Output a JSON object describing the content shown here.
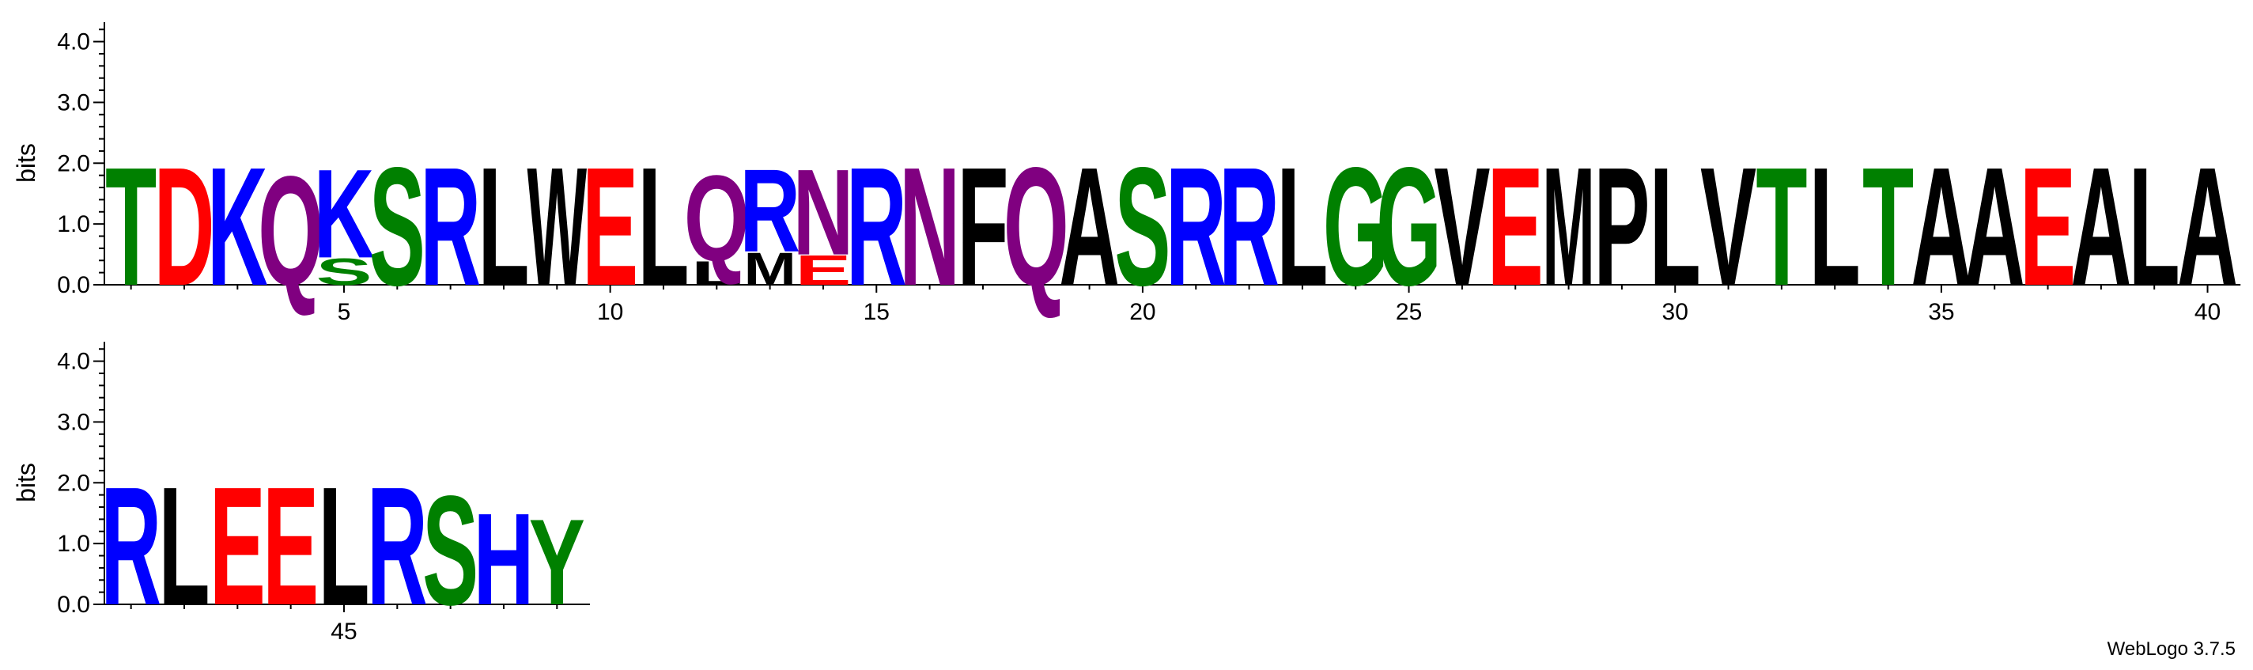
{
  "chart_data": {
    "type": "sequence-logo",
    "ylabel": "bits",
    "ylim": [
      0,
      4.32
    ],
    "yticks": [
      "0.0",
      "1.0",
      "2.0",
      "3.0",
      "4.0"
    ],
    "colors": {
      "polar": "#008000",
      "acidic": "#ff0000",
      "basic": "#0000ff",
      "neutral": "#800080",
      "hydrophobic": "#000000"
    },
    "rows": [
      {
        "first_position": 1,
        "last_position": 40,
        "xticks": [
          5,
          10,
          15,
          20,
          25,
          30,
          35,
          40
        ],
        "positions": [
          {
            "pos": 1,
            "stack": [
              {
                "letter": "T",
                "bits": 2.0
              }
            ]
          },
          {
            "pos": 2,
            "stack": [
              {
                "letter": "D",
                "bits": 2.0
              }
            ]
          },
          {
            "pos": 3,
            "stack": [
              {
                "letter": "K",
                "bits": 2.0
              }
            ]
          },
          {
            "pos": 4,
            "stack": [
              {
                "letter": "Q",
                "bits": 1.85
              }
            ]
          },
          {
            "pos": 5,
            "stack": [
              {
                "letter": "S",
                "bits": 0.45
              },
              {
                "letter": "K",
                "bits": 1.5
              }
            ]
          },
          {
            "pos": 6,
            "stack": [
              {
                "letter": "S",
                "bits": 2.0
              }
            ]
          },
          {
            "pos": 7,
            "stack": [
              {
                "letter": "R",
                "bits": 2.0
              }
            ]
          },
          {
            "pos": 8,
            "stack": [
              {
                "letter": "L",
                "bits": 2.0
              }
            ]
          },
          {
            "pos": 9,
            "stack": [
              {
                "letter": "W",
                "bits": 2.0
              }
            ]
          },
          {
            "pos": 10,
            "stack": [
              {
                "letter": "E",
                "bits": 2.0
              }
            ]
          },
          {
            "pos": 11,
            "stack": [
              {
                "letter": "L",
                "bits": 2.0
              }
            ]
          },
          {
            "pos": 12,
            "stack": [
              {
                "letter": "L",
                "bits": 0.4
              },
              {
                "letter": "Q",
                "bits": 1.45
              }
            ]
          },
          {
            "pos": 13,
            "stack": [
              {
                "letter": "M",
                "bits": 0.55
              },
              {
                "letter": "R",
                "bits": 1.4
              }
            ]
          },
          {
            "pos": 14,
            "stack": [
              {
                "letter": "E",
                "bits": 0.5
              },
              {
                "letter": "N",
                "bits": 1.45
              }
            ]
          },
          {
            "pos": 15,
            "stack": [
              {
                "letter": "R",
                "bits": 2.0
              }
            ]
          },
          {
            "pos": 16,
            "stack": [
              {
                "letter": "N",
                "bits": 2.0
              }
            ]
          },
          {
            "pos": 17,
            "stack": [
              {
                "letter": "F",
                "bits": 2.0
              }
            ]
          },
          {
            "pos": 18,
            "stack": [
              {
                "letter": "Q",
                "bits": 2.0
              }
            ]
          },
          {
            "pos": 19,
            "stack": [
              {
                "letter": "A",
                "bits": 2.0
              }
            ]
          },
          {
            "pos": 20,
            "stack": [
              {
                "letter": "S",
                "bits": 2.0
              }
            ]
          },
          {
            "pos": 21,
            "stack": [
              {
                "letter": "R",
                "bits": 2.0
              }
            ]
          },
          {
            "pos": 22,
            "stack": [
              {
                "letter": "R",
                "bits": 2.0
              }
            ]
          },
          {
            "pos": 23,
            "stack": [
              {
                "letter": "L",
                "bits": 2.0
              }
            ]
          },
          {
            "pos": 24,
            "stack": [
              {
                "letter": "G",
                "bits": 2.0
              }
            ]
          },
          {
            "pos": 25,
            "stack": [
              {
                "letter": "G",
                "bits": 2.0
              }
            ]
          },
          {
            "pos": 26,
            "stack": [
              {
                "letter": "V",
                "bits": 2.0
              }
            ]
          },
          {
            "pos": 27,
            "stack": [
              {
                "letter": "E",
                "bits": 2.0
              }
            ]
          },
          {
            "pos": 28,
            "stack": [
              {
                "letter": "M",
                "bits": 2.0
              }
            ]
          },
          {
            "pos": 29,
            "stack": [
              {
                "letter": "P",
                "bits": 2.0
              }
            ]
          },
          {
            "pos": 30,
            "stack": [
              {
                "letter": "L",
                "bits": 2.0
              }
            ]
          },
          {
            "pos": 31,
            "stack": [
              {
                "letter": "V",
                "bits": 2.0
              }
            ]
          },
          {
            "pos": 32,
            "stack": [
              {
                "letter": "T",
                "bits": 2.0
              }
            ]
          },
          {
            "pos": 33,
            "stack": [
              {
                "letter": "L",
                "bits": 2.0
              }
            ]
          },
          {
            "pos": 34,
            "stack": [
              {
                "letter": "T",
                "bits": 2.0
              }
            ]
          },
          {
            "pos": 35,
            "stack": [
              {
                "letter": "A",
                "bits": 2.0
              }
            ]
          },
          {
            "pos": 36,
            "stack": [
              {
                "letter": "A",
                "bits": 2.0
              }
            ]
          },
          {
            "pos": 37,
            "stack": [
              {
                "letter": "E",
                "bits": 2.0
              }
            ]
          },
          {
            "pos": 38,
            "stack": [
              {
                "letter": "A",
                "bits": 2.0
              }
            ]
          },
          {
            "pos": 39,
            "stack": [
              {
                "letter": "L",
                "bits": 2.0
              }
            ]
          },
          {
            "pos": 40,
            "stack": [
              {
                "letter": "A",
                "bits": 2.0
              }
            ]
          }
        ]
      },
      {
        "first_position": 41,
        "last_position": 49,
        "xticks": [
          45
        ],
        "positions": [
          {
            "pos": 41,
            "stack": [
              {
                "letter": "R",
                "bits": 2.0
              }
            ]
          },
          {
            "pos": 42,
            "stack": [
              {
                "letter": "L",
                "bits": 2.0
              }
            ]
          },
          {
            "pos": 43,
            "stack": [
              {
                "letter": "E",
                "bits": 2.0
              }
            ]
          },
          {
            "pos": 44,
            "stack": [
              {
                "letter": "E",
                "bits": 2.0
              }
            ]
          },
          {
            "pos": 45,
            "stack": [
              {
                "letter": "L",
                "bits": 2.0
              }
            ]
          },
          {
            "pos": 46,
            "stack": [
              {
                "letter": "R",
                "bits": 2.0
              }
            ]
          },
          {
            "pos": 47,
            "stack": [
              {
                "letter": "S",
                "bits": 1.85
              }
            ]
          },
          {
            "pos": 48,
            "stack": [
              {
                "letter": "H",
                "bits": 1.55
              }
            ]
          },
          {
            "pos": 49,
            "stack": [
              {
                "letter": "Y",
                "bits": 1.45
              }
            ]
          }
        ]
      }
    ]
  },
  "footer": {
    "credit": "WebLogo 3.7.5"
  }
}
